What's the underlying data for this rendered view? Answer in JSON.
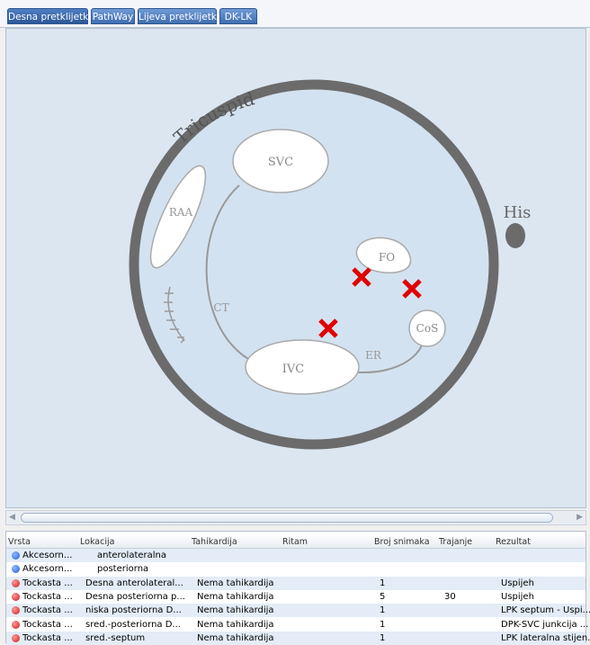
{
  "tabs": [
    "Desna pretklijetka",
    "PathWay",
    "Lijeva pretklijetka",
    "DK-LK"
  ],
  "diagram": {
    "tricuspid": "Tricuspid",
    "svc": "SVC",
    "raa": "RAA",
    "fo": "FO",
    "cos": "CoS",
    "ivc": "IVC",
    "ct": "CT",
    "er": "ER",
    "his": "His"
  },
  "table": {
    "headers": [
      "Vrsta",
      "Lokacija",
      "Tahikardija",
      "Ritam",
      "Broj snimaka",
      "Trajanje",
      "Rezultat"
    ],
    "rows": [
      {
        "icon": "blue",
        "vrsta": "Akcesorn...",
        "lokacija": "anterolateralna"
      },
      {
        "icon": "blue",
        "vrsta": "Akcesorn...",
        "lokacija": "posteriorna"
      },
      {
        "icon": "red",
        "vrsta": "Tockasta ...",
        "lokacija": "Desna anterolateral...",
        "tahikardija": "Nema tahikardija",
        "broj": 1,
        "rezultat": "Uspijeh"
      },
      {
        "icon": "red",
        "vrsta": "Tockasta ...",
        "lokacija": "Desna posteriorna p...",
        "tahikardija": "Nema tahikardija",
        "broj": 5,
        "trajanje": 30,
        "rezultat": "Uspijeh"
      },
      {
        "icon": "red",
        "vrsta": "Tockasta ...",
        "lokacija": "niska posteriorna D...",
        "tahikardija": "Nema tahikardija",
        "broj": 1,
        "rezultat": "LPK septum - Uspi..."
      },
      {
        "icon": "red",
        "vrsta": "Tockasta ...",
        "lokacija": "sred.-posteriorna D...",
        "tahikardija": "Nema tahikardija",
        "broj": 1,
        "rezultat": "DPK-SVC junkcija ..."
      },
      {
        "icon": "red",
        "vrsta": "Tockasta ...",
        "lokacija": "sred.-septum",
        "tahikardija": "Nema tahikardija",
        "broj": 1,
        "rezultat": "LPK lateralna stijen..."
      }
    ]
  }
}
